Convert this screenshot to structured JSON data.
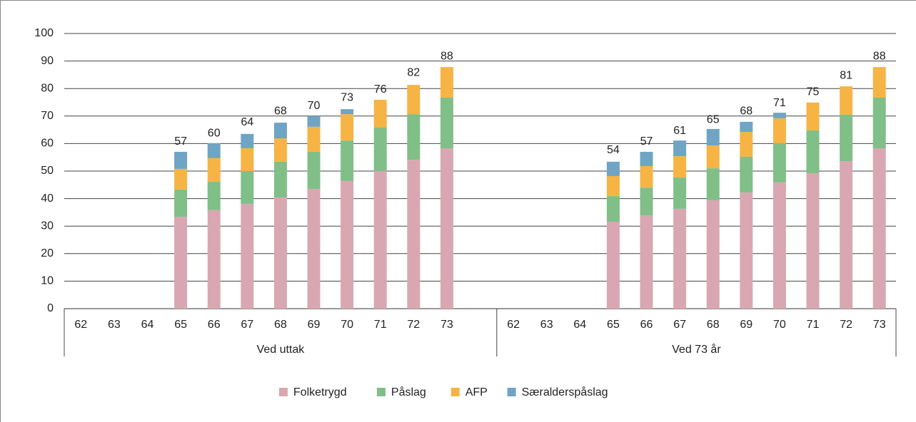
{
  "chart_data": {
    "type": "stacked_bar",
    "groups": [
      {
        "label": "Ved uttak",
        "categories": [
          "62",
          "63",
          "64",
          "65",
          "66",
          "67",
          "68",
          "69",
          "70",
          "71",
          "72",
          "73",
          null
        ]
      },
      {
        "label": "Ved 73 år",
        "categories": [
          "62",
          "63",
          "64",
          "65",
          "66",
          "67",
          "68",
          "69",
          "70",
          "71",
          "72",
          "73"
        ]
      }
    ],
    "series": [
      {
        "name": "Folketrygd",
        "color": "#d9a7b1",
        "values": [
          0,
          0,
          0,
          33.4,
          35.8,
          38.1,
          40.4,
          43.5,
          46.4,
          50,
          54.1,
          58.3,
          null,
          0,
          0,
          0,
          31.6,
          33.9,
          36.3,
          39.4,
          42.2,
          45.9,
          49.2,
          53.6,
          58.3
        ]
      },
      {
        "name": "Påslag",
        "color": "#80bf87",
        "values": [
          0,
          0,
          0,
          9.9,
          10.3,
          11.9,
          13,
          13.5,
          14.7,
          15.8,
          16.6,
          18.4,
          null,
          0,
          0,
          0,
          9.3,
          10.1,
          11.4,
          11.6,
          13,
          14.2,
          15.6,
          16.9,
          18.4
        ]
      },
      {
        "name": "AFP",
        "color": "#f6b445",
        "values": [
          0,
          0,
          0,
          7.5,
          8.6,
          8.3,
          8.5,
          9.1,
          9.6,
          10.1,
          10.6,
          11.1,
          null,
          0,
          0,
          0,
          7.3,
          7.8,
          7.7,
          8.3,
          9,
          9.1,
          10.1,
          10.3,
          11.1
        ]
      },
      {
        "name": "Særalderspåslag",
        "color": "#70a4c4",
        "values": [
          0,
          0,
          0,
          6.2,
          5.4,
          5.2,
          5.7,
          3.9,
          1.8,
          0,
          0,
          0,
          null,
          0,
          0,
          0,
          5.2,
          5.2,
          5.7,
          6,
          3.7,
          2,
          0,
          0,
          0
        ]
      }
    ],
    "total_labels": [
      null,
      null,
      null,
      57,
      60,
      64,
      68,
      70,
      73,
      76,
      82,
      88,
      null,
      null,
      null,
      null,
      54,
      57,
      61,
      65,
      68,
      71,
      75,
      81,
      88
    ],
    "ylim": [
      0,
      100
    ],
    "yticks": [
      0,
      10,
      20,
      30,
      40,
      50,
      60,
      70,
      80,
      90,
      100
    ],
    "grid": true,
    "legend": "bottom"
  }
}
